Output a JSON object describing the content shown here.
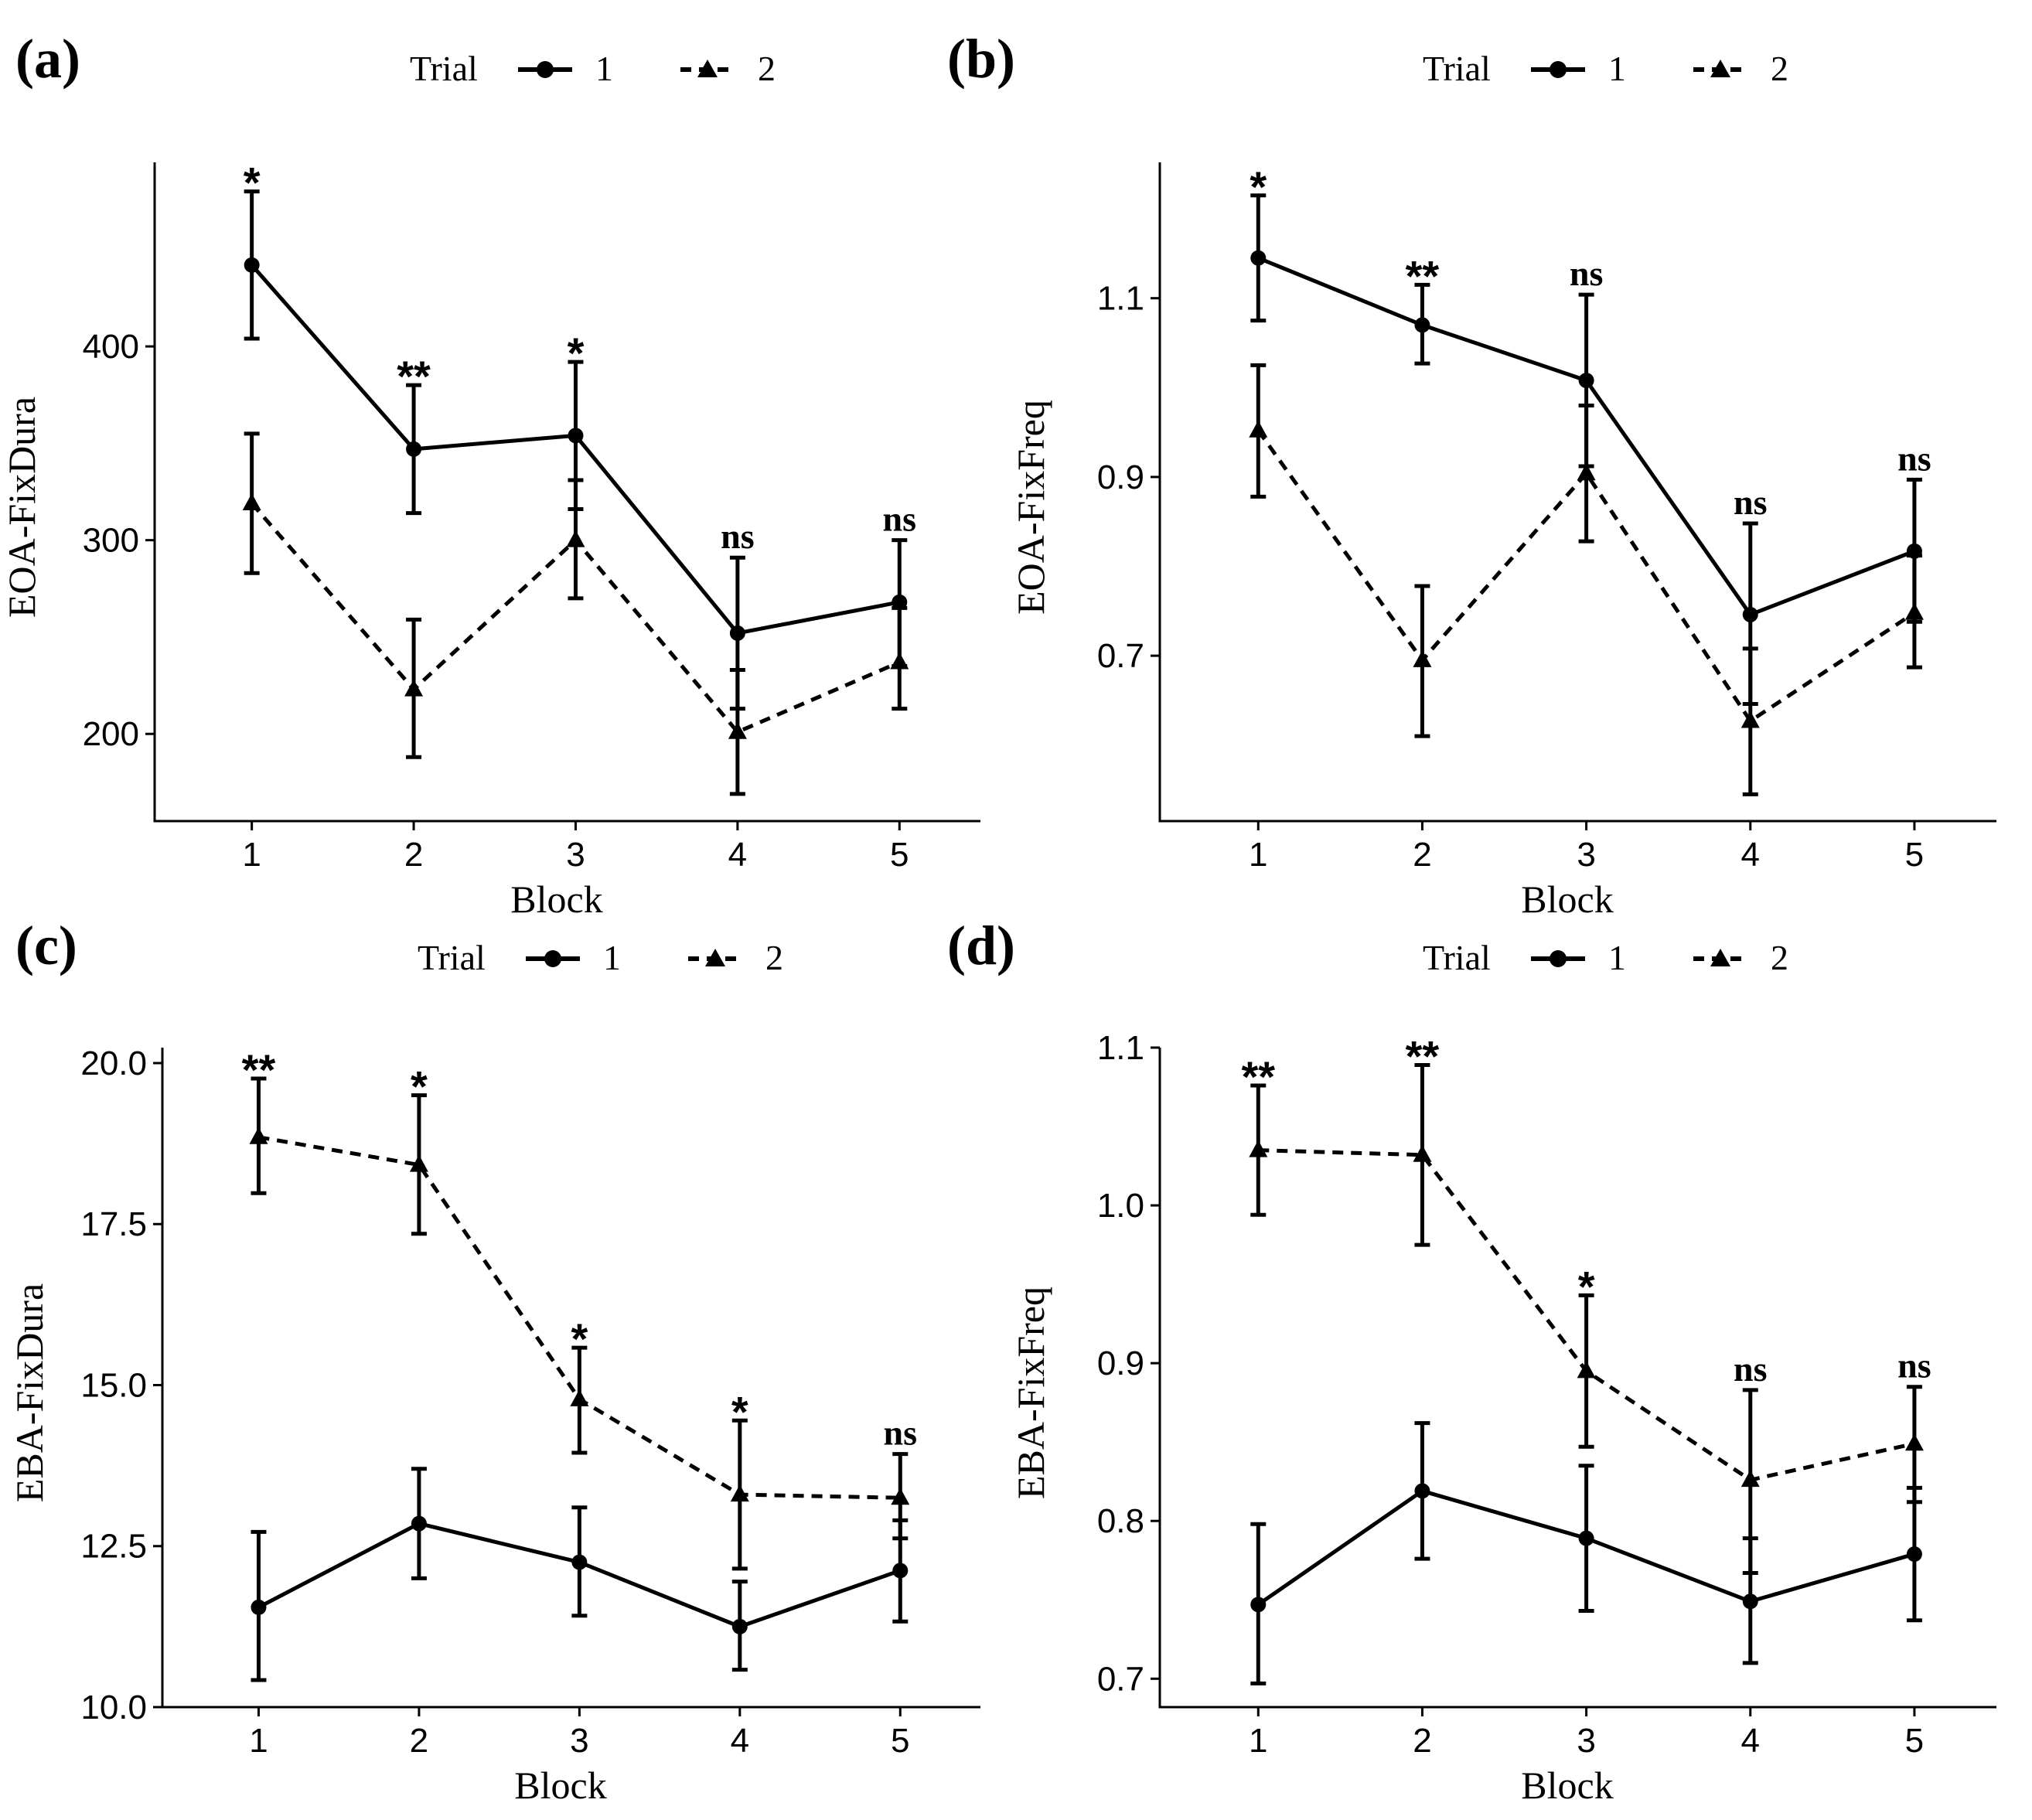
{
  "chart_data": [
    {
      "type": "line",
      "panel": "(a)",
      "legend_title": "Trial",
      "legend_position": "top",
      "xlabel": "Block",
      "ylabel": "EOA-FixDura",
      "categories": [
        "1",
        "2",
        "3",
        "4",
        "5"
      ],
      "xlim": [
        0.4,
        5.5
      ],
      "ylim": [
        155,
        495
      ],
      "yticks": [
        200,
        300,
        400
      ],
      "ytick_labels": [
        "200",
        "300",
        "400"
      ],
      "series": [
        {
          "name": "1",
          "marker": "circle",
          "line": "solid",
          "values": [
            442,
            347,
            354,
            252,
            268
          ],
          "lower": [
            404,
            314,
            316,
            213,
            235
          ],
          "upper": [
            480,
            380,
            392,
            291,
            300
          ]
        },
        {
          "name": "2",
          "marker": "triangle",
          "line": "dashed",
          "values": [
            319,
            223,
            300,
            201,
            237
          ],
          "lower": [
            283,
            188,
            270,
            169,
            213
          ],
          "upper": [
            355,
            259,
            331,
            233,
            265
          ]
        }
      ],
      "annotations": [
        {
          "x": "1",
          "y": 480,
          "text": "*",
          "style": "star"
        },
        {
          "x": "2",
          "y": 380,
          "text": "**",
          "style": "star"
        },
        {
          "x": "3",
          "y": 392,
          "text": "*",
          "style": "star"
        },
        {
          "x": "4",
          "y": 291,
          "text": "ns",
          "style": "ns"
        },
        {
          "x": "5",
          "y": 300,
          "text": "ns",
          "style": "ns"
        }
      ]
    },
    {
      "type": "line",
      "panel": "(b)",
      "legend_title": "Trial",
      "legend_position": "top",
      "xlabel": "Block",
      "ylabel": "EOA-FixFreq",
      "categories": [
        "1",
        "2",
        "3",
        "4",
        "5"
      ],
      "xlim": [
        0.4,
        5.5
      ],
      "ylim": [
        0.515,
        1.252
      ],
      "yticks": [
        0.7,
        0.9,
        1.1
      ],
      "ytick_labels": [
        "0.7",
        "0.9",
        "1.1"
      ],
      "series": [
        {
          "name": "1",
          "marker": "circle",
          "line": "solid",
          "values": [
            1.145,
            1.07,
            1.008,
            0.746,
            0.817
          ],
          "lower": [
            1.075,
            1.027,
            0.912,
            0.646,
            0.738
          ],
          "upper": [
            1.215,
            1.115,
            1.104,
            0.848,
            0.897
          ]
        },
        {
          "name": "2",
          "marker": "triangle",
          "line": "dashed",
          "values": [
            0.952,
            0.695,
            0.904,
            0.627,
            0.748
          ],
          "lower": [
            0.878,
            0.61,
            0.828,
            0.545,
            0.687
          ],
          "upper": [
            1.025,
            0.778,
            0.98,
            0.708,
            0.812
          ]
        }
      ],
      "annotations": [
        {
          "x": "1",
          "y": 1.215,
          "text": "*",
          "style": "star"
        },
        {
          "x": "2",
          "y": 1.115,
          "text": "**",
          "style": "star"
        },
        {
          "x": "3",
          "y": 1.104,
          "text": "ns",
          "style": "ns"
        },
        {
          "x": "4",
          "y": 0.848,
          "text": "ns",
          "style": "ns"
        },
        {
          "x": "5",
          "y": 0.897,
          "text": "ns",
          "style": "ns"
        }
      ]
    },
    {
      "type": "line",
      "panel": "(c)",
      "legend_title": "Trial",
      "legend_position": "top",
      "xlabel": "Block",
      "ylabel": "EBA-FixDura",
      "categories": [
        "1",
        "2",
        "3",
        "4",
        "5"
      ],
      "xlim": [
        0.4,
        5.5
      ],
      "ylim": [
        10.0,
        20.24
      ],
      "yticks": [
        10.0,
        12.5,
        15.0,
        17.5,
        20.0
      ],
      "ytick_labels": [
        "10.0",
        "12.5",
        "15.0",
        "17.5",
        "20.0"
      ],
      "series": [
        {
          "name": "1",
          "marker": "circle",
          "line": "solid",
          "values": [
            11.55,
            12.85,
            12.25,
            11.25,
            12.12
          ],
          "lower": [
            10.42,
            12.0,
            11.42,
            10.58,
            11.33
          ],
          "upper": [
            12.72,
            13.7,
            13.1,
            11.95,
            12.9
          ]
        },
        {
          "name": "2",
          "marker": "triangle",
          "line": "dashed",
          "values": [
            18.85,
            18.42,
            14.78,
            13.3,
            13.25
          ],
          "lower": [
            17.98,
            17.35,
            13.95,
            12.15,
            12.62
          ],
          "upper": [
            19.76,
            19.5,
            15.58,
            14.45,
            13.93
          ]
        }
      ],
      "annotations": [
        {
          "x": "1",
          "y": 19.76,
          "text": "**",
          "style": "star"
        },
        {
          "x": "2",
          "y": 19.5,
          "text": "*",
          "style": "star"
        },
        {
          "x": "3",
          "y": 15.58,
          "text": "*",
          "style": "star"
        },
        {
          "x": "4",
          "y": 14.45,
          "text": "*",
          "style": "star"
        },
        {
          "x": "5",
          "y": 13.93,
          "text": "ns",
          "style": "ns"
        }
      ]
    },
    {
      "type": "line",
      "panel": "(d)",
      "legend_title": "Trial",
      "legend_position": "top",
      "xlabel": "Block",
      "ylabel": "EBA-FixFreq",
      "categories": [
        "1",
        "2",
        "3",
        "4",
        "5"
      ],
      "xlim": [
        0.4,
        5.5
      ],
      "ylim": [
        0.682,
        1.1
      ],
      "yticks": [
        0.7,
        0.8,
        0.9,
        1.0,
        1.1
      ],
      "ytick_labels": [
        "0.7",
        "0.8",
        "0.9",
        "1.0",
        "1.1"
      ],
      "series": [
        {
          "name": "1",
          "marker": "circle",
          "line": "solid",
          "values": [
            0.747,
            0.819,
            0.789,
            0.749,
            0.779
          ],
          "lower": [
            0.697,
            0.776,
            0.743,
            0.71,
            0.737
          ],
          "upper": [
            0.798,
            0.862,
            0.835,
            0.789,
            0.821
          ]
        },
        {
          "name": "2",
          "marker": "triangle",
          "line": "dashed",
          "values": [
            1.035,
            1.032,
            0.895,
            0.826,
            0.849
          ],
          "lower": [
            0.994,
            0.975,
            0.847,
            0.767,
            0.812
          ],
          "upper": [
            1.076,
            1.089,
            0.943,
            0.883,
            0.885
          ]
        }
      ],
      "annotations": [
        {
          "x": "1",
          "y": 1.076,
          "text": "**",
          "style": "star"
        },
        {
          "x": "2",
          "y": 1.089,
          "text": "**",
          "style": "star"
        },
        {
          "x": "3",
          "y": 0.943,
          "text": "*",
          "style": "star"
        },
        {
          "x": "4",
          "y": 0.883,
          "text": "ns",
          "style": "ns"
        },
        {
          "x": "5",
          "y": 0.885,
          "text": "ns",
          "style": "ns"
        }
      ]
    }
  ]
}
